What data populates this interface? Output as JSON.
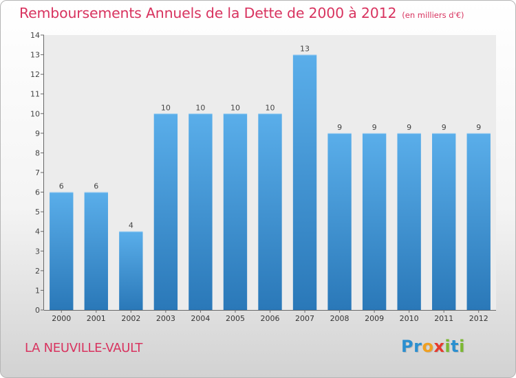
{
  "header": {
    "title": "Remboursements Annuels de la Dette de 2000 à 2012",
    "subtitle": "(en milliers d'€)"
  },
  "footer": {
    "commune": "LA NEUVILLE-VAULT",
    "logo_text": "Proxiti",
    "logo_letters": [
      {
        "ch": "P",
        "color": "#2b8fd0"
      },
      {
        "ch": "r",
        "color": "#2b8fd0"
      },
      {
        "ch": "o",
        "color": "#f0a020"
      },
      {
        "ch": "x",
        "color": "#e63a2e"
      },
      {
        "ch": "i",
        "color": "#7cb832"
      },
      {
        "ch": "t",
        "color": "#2b8fd0"
      },
      {
        "ch": "i",
        "color": "#7cb832"
      }
    ]
  },
  "chart_data": {
    "type": "bar",
    "title": "Remboursements Annuels de la Dette de 2000 à 2012",
    "subtitle": "(en milliers d'€)",
    "xlabel": "",
    "ylabel": "",
    "categories": [
      "2000",
      "2001",
      "2002",
      "2003",
      "2004",
      "2005",
      "2006",
      "2007",
      "2008",
      "2009",
      "2010",
      "2011",
      "2012"
    ],
    "values": [
      6,
      6,
      4,
      10,
      10,
      10,
      10,
      13,
      9,
      9,
      9,
      9,
      9
    ],
    "data_labels": [
      "6",
      "6",
      "4",
      "10",
      "10",
      "10",
      "10",
      "13",
      "9",
      "9",
      "9",
      "9",
      "9"
    ],
    "ylim": [
      0,
      14
    ],
    "yticks": [
      0,
      1,
      2,
      3,
      4,
      5,
      6,
      7,
      8,
      9,
      10,
      11,
      12,
      13,
      14
    ],
    "grid": false,
    "bar_color_top": "#5aaeea",
    "bar_color_bottom": "#2a78b8",
    "accent_color": "#d8335f"
  }
}
